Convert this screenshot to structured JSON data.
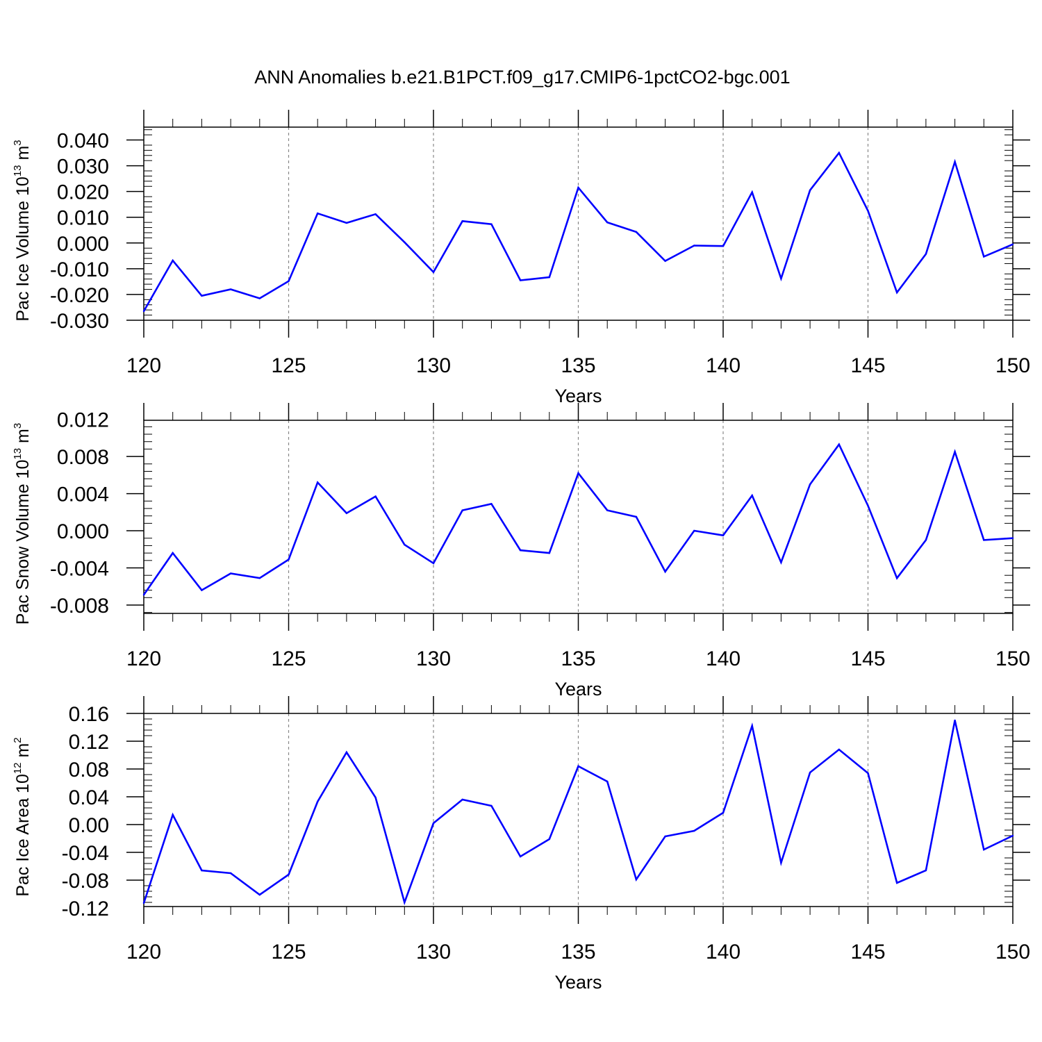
{
  "title": "ANN Anomalies b.e21.B1PCT.f09_g17.CMIP6-1pctCO2-bgc.001",
  "line_color": "#0000ff",
  "chart_data": [
    {
      "type": "line",
      "ylabel": "Pac Ice Volume 10",
      "ylabel_exp": "13",
      "ylabel_unit": "m",
      "ylabel_unit_exp": "3",
      "xlabel": "Years",
      "xlim": [
        120,
        150
      ],
      "ylim": [
        -0.03,
        0.045
      ],
      "yticks": [
        -0.03,
        -0.02,
        -0.01,
        0.0,
        0.01,
        0.02,
        0.03,
        0.04
      ],
      "ytick_labels": [
        "-0.030",
        "-0.020",
        "-0.010",
        "0.000",
        "0.010",
        "0.020",
        "0.030",
        "0.040"
      ],
      "xticks": [
        120,
        125,
        130,
        135,
        140,
        145,
        150
      ],
      "xtick_labels": [
        "120",
        "125",
        "130",
        "135",
        "140",
        "145",
        "150"
      ],
      "x": [
        120,
        121,
        122,
        123,
        124,
        125,
        126,
        127,
        128,
        129,
        130,
        131,
        132,
        133,
        134,
        135,
        136,
        137,
        138,
        139,
        140,
        141,
        142,
        143,
        144,
        145,
        146,
        147,
        148,
        149,
        150
      ],
      "y": [
        -0.0265,
        -0.0068,
        -0.0205,
        -0.018,
        -0.0215,
        -0.0148,
        0.0115,
        0.0078,
        0.0112,
        0.0003,
        -0.0113,
        0.0085,
        0.0073,
        -0.0145,
        -0.0133,
        0.0215,
        0.008,
        0.0043,
        -0.007,
        -0.001,
        -0.0012,
        0.0197,
        -0.0138,
        0.0205,
        0.035,
        0.0125,
        -0.0192,
        -0.0043,
        0.0315,
        -0.0053,
        -0.0005
      ]
    },
    {
      "type": "line",
      "ylabel": "Pac Snow Volume 10",
      "ylabel_exp": "13",
      "ylabel_unit": "m",
      "ylabel_unit_exp": "3",
      "xlabel": "Years",
      "xlim": [
        120,
        150
      ],
      "ylim": [
        -0.0089,
        0.0119
      ],
      "yticks": [
        -0.008,
        -0.004,
        0.0,
        0.004,
        0.008,
        0.012
      ],
      "ytick_labels": [
        "-0.008",
        "-0.004",
        "0.000",
        "0.004",
        "0.008",
        "0.012"
      ],
      "xticks": [
        120,
        125,
        130,
        135,
        140,
        145,
        150
      ],
      "xtick_labels": [
        "120",
        "125",
        "130",
        "135",
        "140",
        "145",
        "150"
      ],
      "x": [
        120,
        121,
        122,
        123,
        124,
        125,
        126,
        127,
        128,
        129,
        130,
        131,
        132,
        133,
        134,
        135,
        136,
        137,
        138,
        139,
        140,
        141,
        142,
        143,
        144,
        145,
        146,
        147,
        148,
        149,
        150
      ],
      "y": [
        -0.0069,
        -0.0024,
        -0.0064,
        -0.0046,
        -0.0051,
        -0.0031,
        0.0052,
        0.0019,
        0.0037,
        -0.0015,
        -0.0035,
        0.0022,
        0.0029,
        -0.0021,
        -0.0024,
        0.0062,
        0.0022,
        0.0015,
        -0.0044,
        0.0,
        -0.0005,
        0.0038,
        -0.0034,
        0.005,
        0.0093,
        0.0027,
        -0.0051,
        -0.001,
        0.0085,
        -0.001,
        -0.0008
      ]
    },
    {
      "type": "line",
      "ylabel": "Pac Ice Area 10",
      "ylabel_exp": "12",
      "ylabel_unit": "m",
      "ylabel_unit_exp": "2",
      "xlabel": "Years",
      "xlim": [
        120,
        150
      ],
      "ylim": [
        -0.118,
        0.16
      ],
      "yticks": [
        -0.12,
        -0.08,
        -0.04,
        0.0,
        0.04,
        0.08,
        0.12,
        0.16
      ],
      "ytick_labels": [
        "-0.12",
        "-0.08",
        "-0.04",
        "0.00",
        "0.04",
        "0.08",
        "0.12",
        "0.16"
      ],
      "xticks": [
        120,
        125,
        130,
        135,
        140,
        145,
        150
      ],
      "xtick_labels": [
        "120",
        "125",
        "130",
        "135",
        "140",
        "145",
        "150"
      ],
      "x": [
        120,
        121,
        122,
        123,
        124,
        125,
        126,
        127,
        128,
        129,
        130,
        131,
        132,
        133,
        134,
        135,
        136,
        137,
        138,
        139,
        140,
        141,
        142,
        143,
        144,
        145,
        146,
        147,
        148,
        149,
        150
      ],
      "y": [
        -0.113,
        0.014,
        -0.066,
        -0.07,
        -0.101,
        -0.072,
        0.033,
        0.104,
        0.039,
        -0.112,
        0.002,
        0.036,
        0.027,
        -0.046,
        -0.021,
        0.084,
        0.062,
        -0.079,
        -0.017,
        -0.009,
        0.017,
        0.142,
        -0.055,
        0.075,
        0.108,
        0.074,
        -0.084,
        -0.066,
        0.15,
        -0.036,
        -0.016
      ]
    }
  ]
}
